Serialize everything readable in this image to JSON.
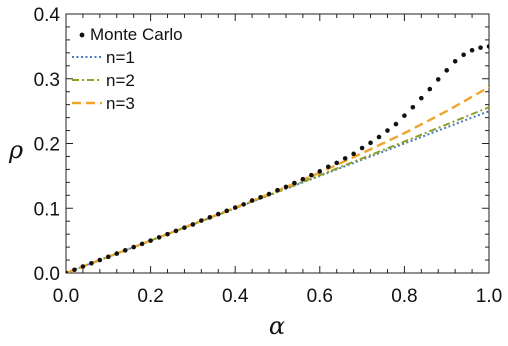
{
  "chart_data": {
    "type": "line",
    "title": "",
    "xlabel": "α",
    "ylabel": "ρ",
    "xlim": [
      0,
      1
    ],
    "ylim": [
      0,
      0.4
    ],
    "x_ticks": [
      "0.0",
      "0.2",
      "0.4",
      "0.6",
      "0.8",
      "1.0"
    ],
    "y_ticks": [
      "0.0",
      "0.1",
      "0.2",
      "0.3",
      "0.4"
    ],
    "grid": false,
    "legend_position": "top-left",
    "series": [
      {
        "name": "Monte Carlo",
        "style": "dots",
        "color": "#111111",
        "x": [
          0.0,
          0.02,
          0.04,
          0.06,
          0.08,
          0.1,
          0.12,
          0.14,
          0.16,
          0.18,
          0.2,
          0.22,
          0.24,
          0.26,
          0.28,
          0.3,
          0.32,
          0.34,
          0.36,
          0.38,
          0.4,
          0.42,
          0.44,
          0.46,
          0.48,
          0.5,
          0.52,
          0.54,
          0.56,
          0.58,
          0.6,
          0.62,
          0.64,
          0.66,
          0.68,
          0.7,
          0.72,
          0.74,
          0.76,
          0.78,
          0.8,
          0.82,
          0.84,
          0.86,
          0.88,
          0.9,
          0.92,
          0.94,
          0.96,
          0.98,
          1.0
        ],
        "y": [
          0.0,
          0.005,
          0.01,
          0.015,
          0.02,
          0.025,
          0.03,
          0.035,
          0.04,
          0.045,
          0.05,
          0.055,
          0.06,
          0.065,
          0.07,
          0.075,
          0.081,
          0.086,
          0.091,
          0.096,
          0.101,
          0.106,
          0.112,
          0.117,
          0.122,
          0.128,
          0.133,
          0.139,
          0.145,
          0.151,
          0.157,
          0.164,
          0.17,
          0.177,
          0.184,
          0.193,
          0.201,
          0.21,
          0.22,
          0.23,
          0.243,
          0.256,
          0.27,
          0.284,
          0.299,
          0.313,
          0.327,
          0.337,
          0.344,
          0.348,
          0.35
        ]
      },
      {
        "name": "n=1",
        "style": "dotted",
        "color": "#4a7ab8",
        "x": [
          0,
          0.2,
          0.4,
          0.6,
          0.8,
          1.0
        ],
        "y": [
          0,
          0.05,
          0.1,
          0.15,
          0.2,
          0.25
        ]
      },
      {
        "name": "n=2",
        "style": "dashdot",
        "color": "#8ca021",
        "x": [
          0,
          0.2,
          0.4,
          0.6,
          0.8,
          1.0
        ],
        "y": [
          0,
          0.05,
          0.1,
          0.151,
          0.203,
          0.256
        ]
      },
      {
        "name": "n=3",
        "style": "dashed",
        "color": "#f0a42c",
        "x": [
          0,
          0.2,
          0.4,
          0.5,
          0.6,
          0.7,
          0.8,
          0.9,
          1.0
        ],
        "y": [
          0,
          0.05,
          0.101,
          0.127,
          0.155,
          0.185,
          0.216,
          0.25,
          0.287
        ]
      }
    ]
  }
}
